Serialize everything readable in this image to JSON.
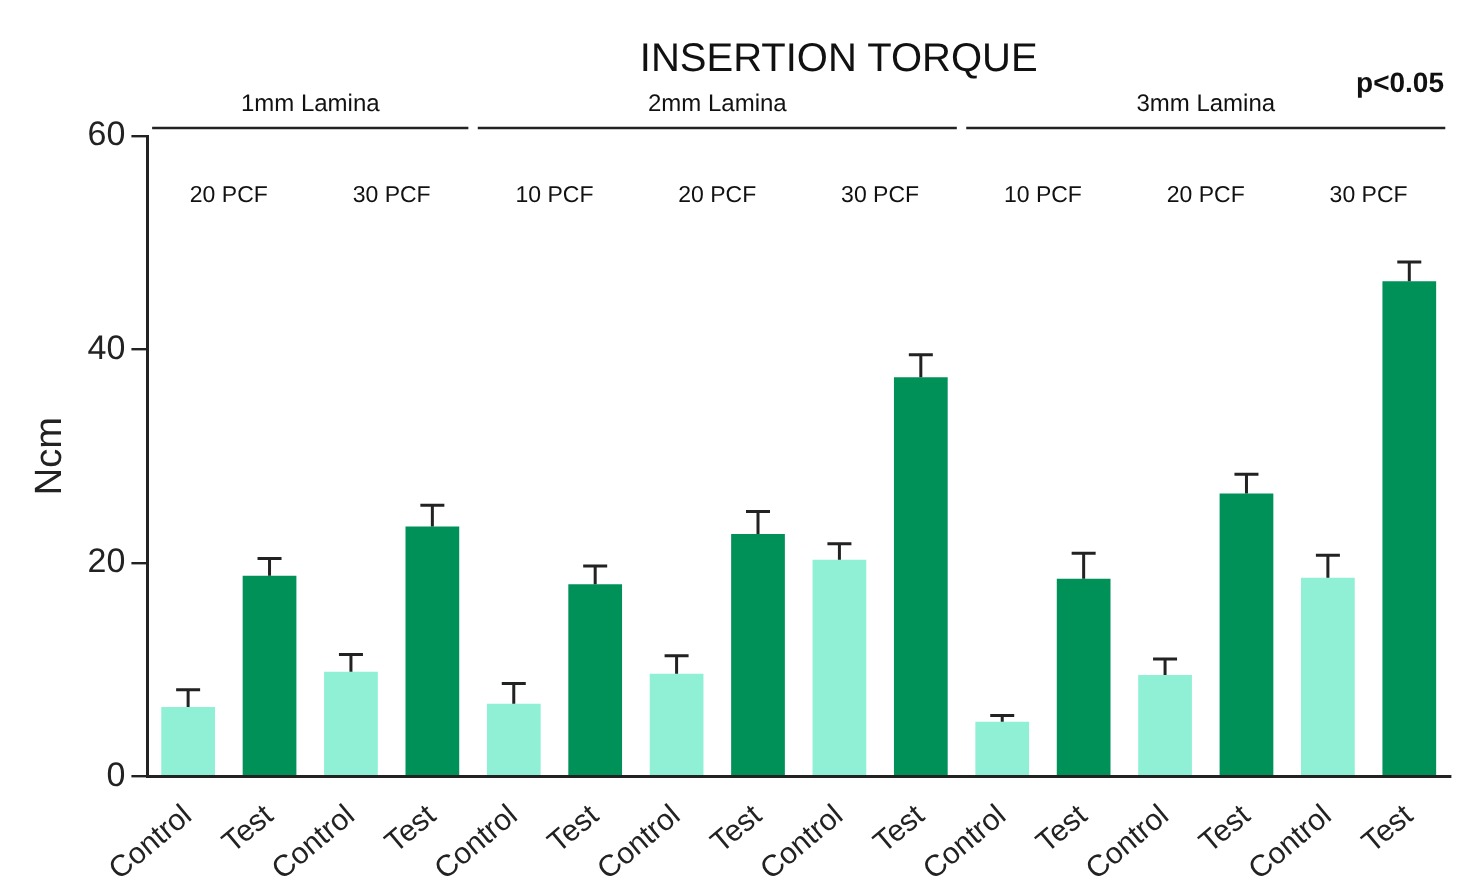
{
  "chart_data": {
    "type": "bar",
    "title": "INSERTION TORQUE",
    "ylabel": "Ncm",
    "categories": [
      "Control",
      "Test",
      "Control",
      "Test",
      "Control",
      "Test",
      "Control",
      "Test",
      "Control",
      "Test",
      "Control",
      "Test",
      "Control",
      "Test",
      "Control",
      "Test"
    ],
    "values": [
      6.5,
      18.8,
      9.8,
      23.4,
      6.8,
      18.0,
      9.6,
      22.7,
      20.3,
      37.4,
      5.1,
      18.5,
      9.5,
      26.5,
      18.6,
      46.4
    ],
    "errors": [
      [
        6.5,
        8.1
      ],
      [
        18.8,
        20.4
      ],
      [
        9.8,
        11.4
      ],
      [
        23.4,
        25.4
      ],
      [
        6.8,
        8.7
      ],
      [
        18.0,
        19.7
      ],
      [
        9.6,
        11.3
      ],
      [
        22.7,
        24.8
      ],
      [
        20.3,
        21.8
      ],
      [
        37.4,
        39.5
      ],
      [
        5.1,
        5.7
      ],
      [
        18.5,
        20.9
      ],
      [
        9.5,
        11.0
      ],
      [
        26.5,
        28.3
      ],
      [
        18.6,
        20.7
      ],
      [
        46.4,
        48.2
      ]
    ],
    "colors": [
      "#8ff0d6",
      "#009159",
      "#8ff0d6",
      "#009159",
      "#8ff0d6",
      "#009159",
      "#8ff0d6",
      "#009159",
      "#8ff0d6",
      "#009159",
      "#8ff0d6",
      "#009159",
      "#8ff0d6",
      "#009159",
      "#8ff0d6",
      "#009159"
    ],
    "ylim": [
      0,
      60
    ],
    "yticks": [
      0,
      20,
      40,
      60
    ],
    "grid": false,
    "legend": false,
    "annotations": [
      "p<0.05",
      "1mm Lamina",
      "2mm Lamina",
      "3mm Lamina",
      "20 PCF",
      "30 PCF",
      "10 PCF",
      "20 PCF",
      "30 PCF",
      "10 PCF",
      "20 PCF",
      "30 PCF"
    ]
  }
}
